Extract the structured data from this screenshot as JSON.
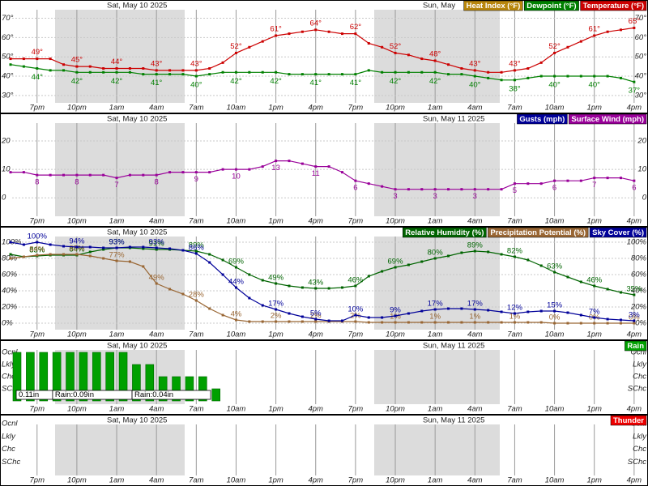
{
  "chart_data": [
    {
      "type": "line",
      "dates": [
        "Sat, May 10 2025",
        "Sun, May"
      ],
      "categories": [
        null,
        null,
        "7pm",
        null,
        null,
        "10pm",
        null,
        null,
        "1am",
        null,
        null,
        "4am",
        null,
        null,
        "7am",
        null,
        null,
        "10am",
        null,
        null,
        "1pm",
        null,
        null,
        "4pm",
        null,
        null,
        "7pm",
        null,
        null,
        "10pm",
        null,
        null,
        "1am",
        null,
        null,
        "4am",
        null,
        null,
        "7am",
        null,
        null,
        "10am",
        null,
        null,
        "1pm",
        null,
        null,
        "4pm"
      ],
      "ylim": [
        27,
        74
      ],
      "yticks": [
        {
          "value": 30,
          "label": "30°"
        },
        {
          "value": 40,
          "label": "40°"
        },
        {
          "value": 50,
          "label": "50°"
        },
        {
          "value": 60,
          "label": "60°"
        },
        {
          "value": 70,
          "label": "70°"
        }
      ],
      "grid": true,
      "series": [
        {
          "name": "Heat Index (°F)",
          "color": "#b8860b",
          "values": [
            null,
            null,
            null,
            null,
            null,
            null,
            null,
            null,
            null,
            null,
            null,
            null,
            null,
            null,
            null,
            null,
            null,
            null,
            null,
            null,
            null,
            null,
            null,
            null,
            null,
            null,
            null,
            null,
            null,
            null,
            null,
            null,
            null,
            null,
            null,
            null,
            null,
            null,
            null,
            null,
            null,
            null,
            null,
            null,
            null,
            null,
            null,
            null
          ]
        },
        {
          "name": "Dewpoint (°F)",
          "color": "#008000",
          "values": [
            46,
            45,
            44,
            43,
            43,
            42,
            42,
            42,
            42,
            42,
            41,
            41,
            41,
            41,
            40,
            41,
            42,
            42,
            42,
            42,
            42,
            41,
            41,
            41,
            41,
            41,
            41,
            43,
            42,
            42,
            42,
            42,
            42,
            41,
            41,
            40,
            39,
            38,
            38,
            39,
            40,
            40,
            40,
            40,
            40,
            40,
            39,
            37
          ],
          "value_labels": [
            null,
            null,
            "44°",
            null,
            null,
            "42°",
            null,
            null,
            "42°",
            null,
            null,
            "41°",
            null,
            null,
            "40°",
            null,
            null,
            "42°",
            null,
            null,
            "42°",
            null,
            null,
            "41°",
            null,
            null,
            "41°",
            null,
            null,
            "42°",
            null,
            null,
            "42°",
            null,
            null,
            "40°",
            null,
            null,
            "38°",
            null,
            null,
            "40°",
            null,
            null,
            "40°",
            null,
            null,
            "37°"
          ]
        },
        {
          "name": "Temperature (°F)",
          "color": "#cc0000",
          "values": [
            49,
            49,
            49,
            49,
            46,
            45,
            45,
            44,
            44,
            44,
            44,
            43,
            43,
            43,
            43,
            44,
            47,
            52,
            55,
            58,
            61,
            62,
            63,
            64,
            63,
            62,
            62,
            57,
            55,
            52,
            51,
            49,
            48,
            46,
            44,
            43,
            42,
            42,
            43,
            44,
            47,
            52,
            55,
            58,
            61,
            63,
            64,
            65
          ],
          "value_labels": [
            null,
            null,
            "49°",
            null,
            null,
            "45°",
            null,
            null,
            "44°",
            null,
            null,
            "43°",
            null,
            null,
            "43°",
            null,
            null,
            "52°",
            null,
            null,
            "61°",
            null,
            null,
            "64°",
            null,
            null,
            "62°",
            null,
            null,
            "52°",
            null,
            null,
            "48°",
            null,
            null,
            "43°",
            null,
            null,
            "43°",
            null,
            null,
            "52°",
            null,
            null,
            "61°",
            null,
            null,
            "65°"
          ]
        }
      ]
    },
    {
      "type": "line",
      "dates": [
        "Sat, May 10 2025",
        "Sun, May 11 2025"
      ],
      "categories": [
        null,
        null,
        "7pm",
        null,
        null,
        "10pm",
        null,
        null,
        "1am",
        null,
        null,
        "4am",
        null,
        null,
        "7am",
        null,
        null,
        "10am",
        null,
        null,
        "1pm",
        null,
        null,
        "4pm",
        null,
        null,
        "7pm",
        null,
        null,
        "10pm",
        null,
        null,
        "1am",
        null,
        null,
        "4am",
        null,
        null,
        "7am",
        null,
        null,
        "10am",
        null,
        null,
        "1pm",
        null,
        null,
        "4pm"
      ],
      "ylim": [
        -6.5,
        26
      ],
      "yticks": [
        0,
        10,
        20
      ],
      "grid": true,
      "series": [
        {
          "name": "Gusts (mph)",
          "color": "#000099",
          "values": [
            null,
            null,
            null,
            null,
            null,
            null,
            null,
            null,
            null,
            null,
            null,
            null,
            null,
            null,
            null,
            null,
            null,
            null,
            null,
            null,
            null,
            null,
            null,
            null,
            null,
            null,
            null,
            null,
            null,
            null,
            null,
            null,
            null,
            null,
            null,
            null,
            null,
            null,
            null,
            null,
            null,
            null,
            null,
            null,
            null,
            null,
            null,
            null
          ]
        },
        {
          "name": "Surface Wind (mph)",
          "color": "#990099",
          "values": [
            9,
            9,
            8,
            8,
            8,
            8,
            8,
            8,
            7,
            8,
            8,
            8,
            9,
            9,
            9,
            9,
            10,
            10,
            10,
            11,
            13,
            13,
            12,
            11,
            11,
            9,
            6,
            5,
            4,
            3,
            3,
            3,
            3,
            3,
            3,
            3,
            3,
            3,
            5,
            5,
            5,
            6,
            6,
            6,
            7,
            7,
            7,
            6
          ]
        }
      ]
    },
    {
      "type": "line",
      "dates": [
        "Sat, May 10 2025"
      ],
      "categories": [
        null,
        null,
        "7pm",
        null,
        null,
        "10pm",
        null,
        null,
        "1am",
        null,
        null,
        "4am",
        null,
        null,
        "7am",
        null,
        null,
        "10am",
        null,
        null,
        "1pm",
        null,
        null,
        "4pm",
        null,
        null,
        "7pm",
        null,
        null,
        "10pm",
        null,
        null,
        "1am",
        null,
        null,
        "4am",
        null,
        null,
        "7am",
        null,
        null,
        "10am",
        null,
        null,
        "1pm",
        null,
        null,
        "4pm"
      ],
      "ylim": [
        -8,
        106
      ],
      "yticks": [
        {
          "value": 0,
          "label": "0%"
        },
        {
          "value": 20,
          "label": "20%"
        },
        {
          "value": 40,
          "label": "40%"
        },
        {
          "value": 60,
          "label": "60%"
        },
        {
          "value": 80,
          "label": "80%"
        },
        {
          "value": 100,
          "label": "100%"
        }
      ],
      "grid": true,
      "series": [
        {
          "name": "Relative Humidity (%)",
          "color": "#006400",
          "values": [
            85,
            82,
            83,
            84,
            84,
            84,
            88,
            91,
            93,
            93,
            92,
            91,
            91,
            90,
            89,
            85,
            78,
            69,
            60,
            53,
            49,
            46,
            44,
            43,
            43,
            44,
            46,
            58,
            64,
            69,
            72,
            76,
            80,
            83,
            87,
            89,
            88,
            85,
            82,
            78,
            71,
            63,
            57,
            51,
            46,
            42,
            38,
            35
          ],
          "value_labels": [
            null,
            null,
            "83%",
            null,
            null,
            "84%",
            null,
            null,
            "93%",
            null,
            null,
            "91%",
            null,
            null,
            "89%",
            null,
            null,
            "69%",
            null,
            null,
            "49%",
            null,
            null,
            "43%",
            null,
            null,
            "46%",
            null,
            null,
            "69%",
            null,
            null,
            "80%",
            null,
            null,
            "89%",
            null,
            null,
            "82%",
            null,
            null,
            "63%",
            null,
            null,
            "46%",
            null,
            null,
            "35%"
          ]
        },
        {
          "name": "Precipitation Potential (%)",
          "color": "#996633",
          "values": [
            80,
            82,
            84,
            85,
            85,
            85,
            83,
            80,
            77,
            76,
            70,
            49,
            42,
            36,
            28,
            18,
            10,
            4,
            2,
            2,
            2,
            2,
            2,
            2,
            2,
            2,
            2,
            1,
            1,
            1,
            1,
            1,
            1,
            1,
            1,
            1,
            1,
            1,
            1,
            1,
            1,
            0,
            0,
            0,
            0,
            0,
            0,
            0
          ],
          "value_labels": [
            null,
            null,
            "84%",
            null,
            null,
            "85%",
            null,
            null,
            "77%",
            null,
            null,
            "49%",
            null,
            null,
            "28%",
            null,
            null,
            "4%",
            null,
            null,
            "2%",
            null,
            null,
            "2%",
            null,
            null,
            "2%",
            null,
            null,
            "1%",
            null,
            null,
            "1%",
            null,
            null,
            "1%",
            null,
            null,
            "1%",
            null,
            null,
            "0%",
            null,
            null,
            "0%",
            null,
            null,
            "0%"
          ]
        },
        {
          "name": "Sky Cover (%)",
          "color": "#000099",
          "values": [
            100,
            97,
            100,
            97,
            95,
            94,
            94,
            93,
            93,
            94,
            94,
            93,
            92,
            90,
            86,
            75,
            60,
            44,
            31,
            22,
            17,
            12,
            8,
            5,
            3,
            3,
            10,
            7,
            7,
            9,
            12,
            15,
            17,
            18,
            18,
            17,
            16,
            14,
            12,
            14,
            15,
            15,
            13,
            10,
            7,
            5,
            4,
            3
          ],
          "value_labels": [
            null,
            null,
            "100%",
            null,
            null,
            "94%",
            null,
            null,
            "93%",
            null,
            null,
            "93%",
            null,
            null,
            "86%",
            null,
            null,
            "44%",
            null,
            null,
            "17%",
            null,
            null,
            "5%",
            null,
            null,
            "10%",
            null,
            null,
            "9%",
            null,
            null,
            "17%",
            null,
            null,
            "17%",
            null,
            null,
            "12%",
            null,
            null,
            "15%",
            null,
            null,
            "7%",
            null,
            null,
            "3%"
          ]
        }
      ]
    },
    {
      "type": "bar",
      "dates": [
        "Sat, May 10 2025",
        "Sun, May 11 2025"
      ],
      "categories": [
        null,
        null,
        "7pm",
        null,
        null,
        "10pm",
        null,
        null,
        "1am",
        null,
        null,
        "4am",
        null,
        null,
        "7am",
        null,
        null,
        "10am",
        null,
        null,
        "1pm",
        null,
        null,
        "4pm",
        null,
        null,
        "7pm",
        null,
        null,
        "10pm",
        null,
        null,
        "1am",
        null,
        null,
        "4am",
        null,
        null,
        "7am",
        null,
        null,
        "10am",
        null,
        null,
        "1pm",
        null,
        null,
        "4pm"
      ],
      "ylim": [
        0,
        4
      ],
      "yticks": [
        {
          "value": 1,
          "label": "SChc"
        },
        {
          "value": 2,
          "label": "Chc"
        },
        {
          "value": 3,
          "label": "Lkly"
        },
        {
          "value": 4,
          "label": "Ocnl"
        }
      ],
      "rain_totals": [
        "0.11in",
        "Rain:0.09in",
        "Rain:0.04in"
      ],
      "series": [
        {
          "name": "Rain",
          "color": "#00a000",
          "values": [
            4,
            4,
            4,
            4,
            4,
            4,
            4,
            4,
            4,
            3,
            3,
            2,
            2,
            2,
            2,
            1,
            null,
            null,
            null,
            null,
            null,
            null,
            null,
            null,
            null,
            null,
            null,
            null,
            null,
            null,
            null,
            null,
            null,
            null,
            null,
            null,
            null,
            null,
            null,
            null,
            null,
            null,
            null,
            null,
            null,
            null,
            null,
            null
          ]
        }
      ]
    },
    {
      "type": "bar",
      "dates": [
        "Sat, May 10 2025",
        "Sun, May 11 2025"
      ],
      "categories": [
        null,
        null,
        "7pm",
        null,
        null,
        "10pm",
        null,
        null,
        "1am",
        null,
        null,
        "4am",
        null,
        null,
        "7am",
        null,
        null,
        "10am",
        null,
        null,
        "1pm",
        null,
        null,
        "4pm",
        null,
        null,
        "7pm",
        null,
        null,
        "10pm",
        null,
        null,
        "1am",
        null,
        null,
        "4am",
        null,
        null,
        "7am",
        null,
        null,
        "10am",
        null,
        null,
        "1pm",
        null,
        null,
        "4pm"
      ],
      "ylim": [
        0,
        4
      ],
      "yticks": [
        {
          "value": 1,
          "label": "SChc"
        },
        {
          "value": 2,
          "label": "Chc"
        },
        {
          "value": 3,
          "label": "Lkly"
        },
        {
          "value": 4,
          "label": "Ocnl"
        }
      ],
      "series": [
        {
          "name": "Thunder",
          "color": "#ee0000",
          "values": [
            null,
            null,
            null,
            null,
            null,
            null,
            null,
            null,
            null,
            null,
            null,
            null,
            null,
            null,
            null,
            null,
            null,
            null,
            null,
            null,
            null,
            null,
            null,
            null,
            null,
            null,
            null,
            null,
            null,
            null,
            null,
            null,
            null,
            null,
            null,
            null,
            null,
            null,
            null,
            null,
            null,
            null,
            null,
            null,
            null,
            null,
            null,
            null
          ]
        }
      ]
    }
  ]
}
